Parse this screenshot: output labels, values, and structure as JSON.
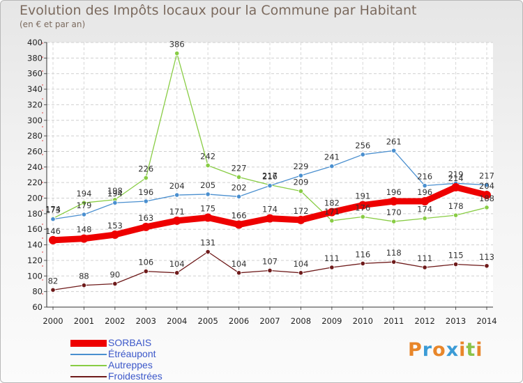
{
  "title": "Evolution des Impôts locaux pour la Commune par Habitant",
  "subtitle": "(en € et par an)",
  "logo": {
    "letters": [
      "P",
      "r",
      "o",
      "x",
      "i",
      "t",
      "i"
    ],
    "colors": [
      "#e8862a",
      "#3b9bd6",
      "#e8862a",
      "#3b9bd6",
      "#e8862a",
      "#8bc34a",
      "#e8862a"
    ]
  },
  "chart_data": {
    "type": "line",
    "x": [
      "2000",
      "2001",
      "2002",
      "2003",
      "2004",
      "2005",
      "2006",
      "2007",
      "2008",
      "2009",
      "2010",
      "2011",
      "2012",
      "2013",
      "2014"
    ],
    "ylim": [
      60,
      400
    ],
    "yticks": [
      60,
      80,
      100,
      120,
      140,
      160,
      180,
      200,
      220,
      240,
      260,
      280,
      300,
      320,
      340,
      360,
      380,
      400
    ],
    "grid": true,
    "legend_position": "bottom-left",
    "series": [
      {
        "name": "SORBAIS",
        "color": "#ee0000",
        "values": [
          146,
          148,
          153,
          163,
          171,
          175,
          166,
          174,
          172,
          182,
          191,
          196,
          196,
          214,
          204
        ]
      },
      {
        "name": "Étréaupont",
        "color": "#4a8fcf",
        "values": [
          173,
          179,
          194,
          196,
          204,
          205,
          202,
          216,
          229,
          241,
          256,
          261,
          216,
          219,
          217
        ]
      },
      {
        "name": "Autreppes",
        "color": "#88cc44",
        "values": [
          174,
          194,
          198,
          226,
          386,
          242,
          227,
          217,
          209,
          171,
          176,
          170,
          174,
          178,
          188
        ]
      },
      {
        "name": "Froidestrées",
        "color": "#6e1a1a",
        "values": [
          82,
          88,
          90,
          106,
          104,
          131,
          104,
          107,
          104,
          111,
          116,
          118,
          111,
          115,
          113
        ]
      }
    ]
  }
}
